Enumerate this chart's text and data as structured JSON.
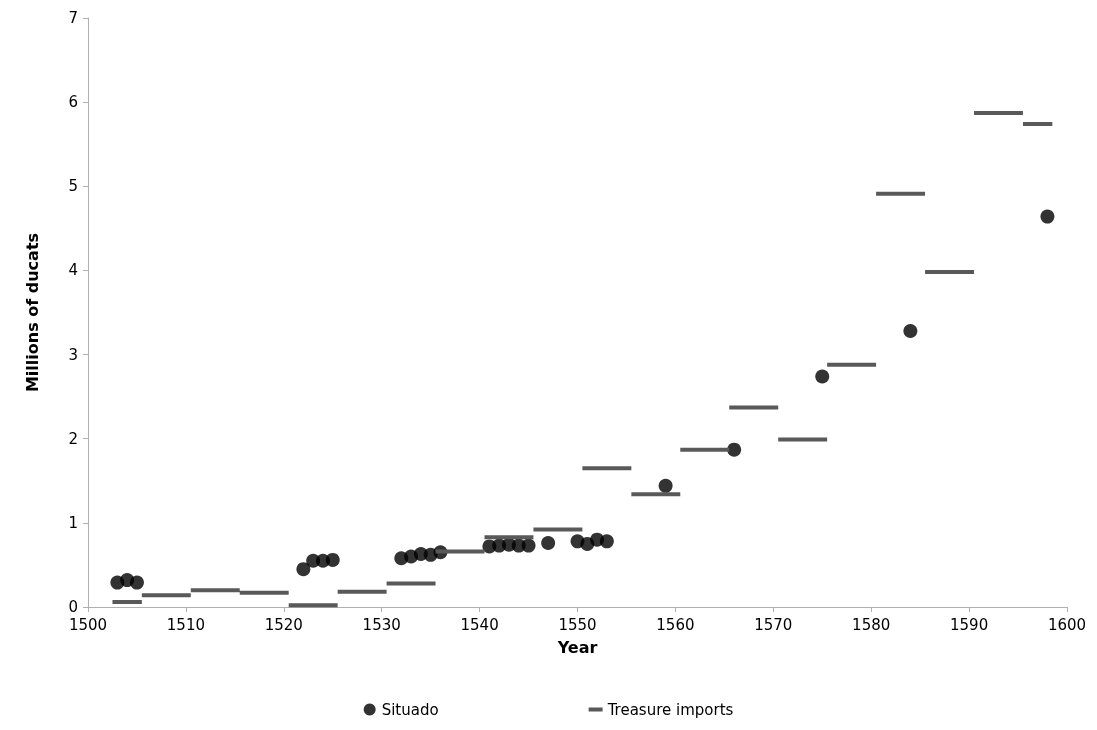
{
  "chart_data": {
    "type": "scatter",
    "xlabel": "Year",
    "ylabel": "Millions of ducats",
    "xlim": [
      1500,
      1600
    ],
    "xticks": [
      1500,
      1510,
      1520,
      1530,
      1540,
      1550,
      1560,
      1570,
      1580,
      1590,
      1600
    ],
    "ylim": [
      0,
      7
    ],
    "yticks": [
      0,
      1,
      2,
      3,
      4,
      5,
      6,
      7
    ],
    "grid": false,
    "legend": "bottom",
    "series": [
      {
        "name": "Situado",
        "marker": "circle",
        "color": "#000000",
        "x": [
          1503,
          1504,
          1505,
          1522,
          1523,
          1524,
          1525,
          1532,
          1533,
          1534,
          1535,
          1536,
          1541,
          1542,
          1543,
          1544,
          1545,
          1547,
          1550,
          1551,
          1552,
          1553,
          1559,
          1566,
          1575,
          1584,
          1598
        ],
        "values": [
          0.29,
          0.32,
          0.29,
          0.45,
          0.55,
          0.55,
          0.56,
          0.58,
          0.6,
          0.63,
          0.62,
          0.65,
          0.72,
          0.73,
          0.74,
          0.73,
          0.73,
          0.76,
          0.78,
          0.75,
          0.8,
          0.78,
          1.44,
          1.87,
          2.74,
          3.28,
          4.64
        ]
      },
      {
        "name": "Treasure imports",
        "type": "line",
        "marker": "none",
        "line_style": "solid",
        "color": "#595959",
        "x": [
          1502.5,
          1505.5,
          null,
          1505.5,
          1510.5,
          null,
          1510.5,
          1515.5,
          null,
          1515.5,
          1520.5,
          null,
          1520.5,
          1525.5,
          null,
          1525.5,
          1530.5,
          null,
          1530.5,
          1535.5,
          null,
          1535.5,
          1540.5,
          null,
          1540.5,
          1545.5,
          null,
          1545.5,
          1550.5,
          null,
          1550.5,
          1555.5,
          null,
          1555.5,
          1560.5,
          null,
          1560.5,
          1565.5,
          null,
          1565.5,
          1570.5,
          null,
          1570.5,
          1575.5,
          null,
          1575.5,
          1580.5,
          null,
          1580.5,
          1585.5,
          null,
          1585.5,
          1590.5,
          null,
          1590.5,
          1595.5,
          null,
          1595.5,
          1598.5
        ],
        "values": [
          0.06,
          0.06,
          null,
          0.14,
          0.14,
          null,
          0.2,
          0.2,
          null,
          0.17,
          0.17,
          null,
          0.02,
          0.02,
          null,
          0.18,
          0.18,
          null,
          0.28,
          0.28,
          null,
          0.66,
          0.66,
          null,
          0.83,
          0.83,
          null,
          0.92,
          0.92,
          null,
          1.65,
          1.65,
          null,
          1.34,
          1.34,
          null,
          1.87,
          1.87,
          null,
          2.37,
          2.37,
          null,
          1.99,
          1.99,
          null,
          2.88,
          2.88,
          null,
          4.91,
          4.91,
          null,
          3.98,
          3.98,
          null,
          5.87,
          5.87,
          null,
          5.74,
          5.74
        ]
      }
    ]
  }
}
